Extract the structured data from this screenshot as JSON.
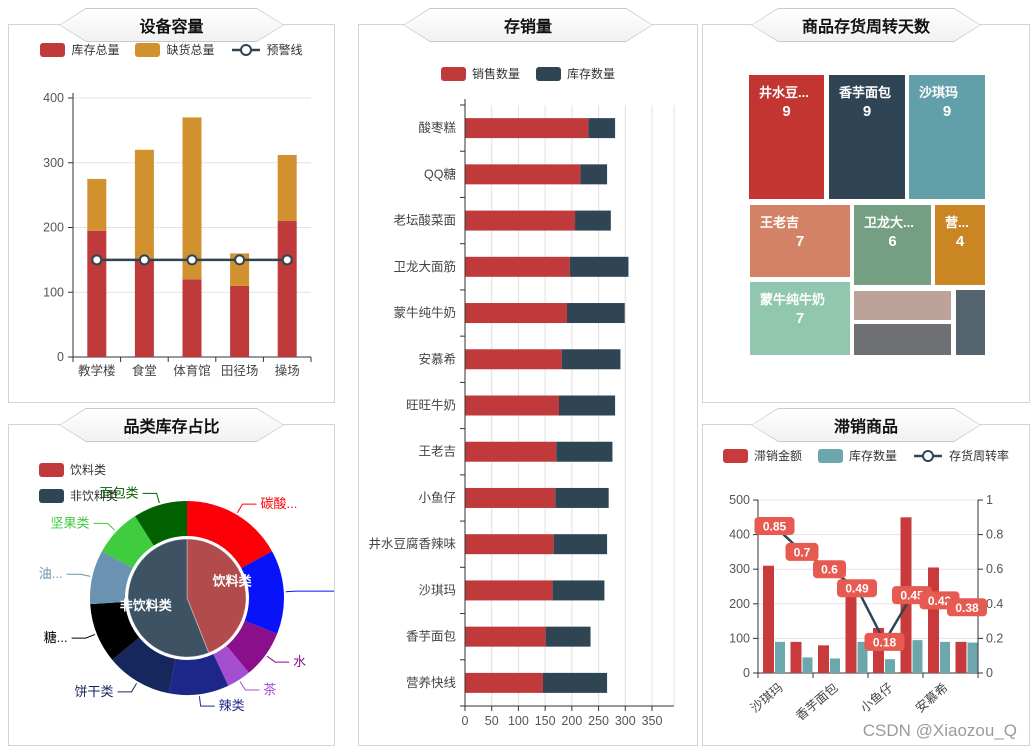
{
  "watermark": "CSDN @Xiaozou_Q",
  "chart_data": [
    {
      "id": "device-capacity",
      "type": "bar",
      "title": "设备容量",
      "legend": [
        {
          "label": "库存总量",
          "symbol": "rect",
          "color": "#c0393b"
        },
        {
          "label": "缺货总量",
          "symbol": "rect",
          "color": "#d0912e"
        },
        {
          "label": "预警线",
          "symbol": "line",
          "color": "#2f4554"
        }
      ],
      "categories": [
        "教学楼",
        "食堂",
        "体育馆",
        "田径场",
        "操场"
      ],
      "series": [
        {
          "name": "库存总量",
          "kind": "bar",
          "color": "#c0393b",
          "values": [
            195,
            150,
            120,
            110,
            210
          ]
        },
        {
          "name": "缺货总量",
          "kind": "bar",
          "color": "#d0912e",
          "values": [
            80,
            170,
            250,
            50,
            102
          ]
        },
        {
          "name": "预警线",
          "kind": "line",
          "color": "#2f4554",
          "values": [
            150,
            150,
            150,
            150,
            150
          ]
        }
      ],
      "ylim": [
        0,
        400
      ],
      "yticks": [
        0,
        100,
        200,
        300,
        400
      ],
      "grid": true
    },
    {
      "id": "stock-sales",
      "type": "bar",
      "title": "存销量",
      "legend": [
        {
          "label": "销售数量",
          "symbol": "rect",
          "color": "#c0393b"
        },
        {
          "label": "库存数量",
          "symbol": "rect",
          "color": "#2f4554"
        }
      ],
      "categories": [
        "酸枣糕",
        "QQ糖",
        "老坛酸菜面",
        "卫龙大面筋",
        "蒙牛纯牛奶",
        "安慕希",
        "旺旺牛奶",
        "王老吉",
        "小鱼仔",
        "井水豆腐香辣味",
        "沙琪玛",
        "香芋面包",
        "营养快线"
      ],
      "series": [
        {
          "name": "销售数量",
          "color": "#c0393b",
          "values": [
            230,
            215,
            205,
            195,
            190,
            180,
            175,
            170,
            168,
            165,
            163,
            150,
            145
          ]
        },
        {
          "name": "库存数量",
          "color": "#2f4554",
          "values": [
            50,
            50,
            67,
            110,
            108,
            110,
            105,
            105,
            100,
            100,
            97,
            84,
            120
          ]
        }
      ],
      "xlim": [
        0,
        350
      ],
      "xticks": [
        0,
        50,
        100,
        150,
        200,
        250,
        300,
        350
      ],
      "grid": true
    },
    {
      "id": "turnover-days",
      "type": "heatmap",
      "title": "商品存货周转天数",
      "items": [
        {
          "name": "井水豆...",
          "value": 9,
          "color": "#c23531"
        },
        {
          "name": "香芋面包",
          "value": 9,
          "color": "#2f4554"
        },
        {
          "name": "沙琪玛",
          "value": 9,
          "color": "#61a0a8"
        },
        {
          "name": "王老吉",
          "value": 7,
          "color": "#d48265"
        },
        {
          "name": "卫龙大...",
          "value": 6,
          "color": "#749f83"
        },
        {
          "name": "营...",
          "value": 4,
          "color": "#ca8622"
        },
        {
          "name": "蒙牛纯牛奶",
          "value": 7,
          "color": "#91c7ae"
        },
        {
          "name": "",
          "value": "",
          "color": "#bda29a"
        },
        {
          "name": "",
          "value": "",
          "color": "#6e7074"
        },
        {
          "name": "",
          "value": "",
          "color": "#546570"
        }
      ]
    },
    {
      "id": "category-share",
      "type": "pie",
      "title": "品类库存占比",
      "legend": [
        {
          "label": "饮料类",
          "symbol": "rect",
          "color": "#c0393b"
        },
        {
          "label": "非饮料类",
          "symbol": "rect",
          "color": "#2f4554"
        }
      ],
      "inner": [
        {
          "name": "饮料类",
          "value": 44,
          "color": "#b24b4b"
        },
        {
          "name": "非饮料类",
          "value": 56,
          "color": "#3d5263"
        }
      ],
      "outer": [
        {
          "name": "碳酸...",
          "value": 17,
          "color": "#fb0006"
        },
        {
          "name": "",
          "value": 14,
          "color": "#0913f9"
        },
        {
          "name": "水",
          "value": 8,
          "color": "#8a0f8a"
        },
        {
          "name": "茶",
          "value": 4,
          "color": "#a44fd0"
        },
        {
          "name": "辣类",
          "value": 10,
          "color": "#1d2788"
        },
        {
          "name": "饼干类",
          "value": 11,
          "color": "#16275e"
        },
        {
          "name": "糖...",
          "value": 10,
          "color": "#000000"
        },
        {
          "name": "油...",
          "value": 9,
          "color": "#6a93b1"
        },
        {
          "name": "坚果类",
          "value": 8,
          "color": "#3fcc3f"
        },
        {
          "name": "面包类",
          "value": 9,
          "color": "#026202"
        }
      ]
    },
    {
      "id": "slow-moving",
      "type": "bar",
      "title": "滞销商品",
      "legend": [
        {
          "label": "滞销金额",
          "symbol": "rect",
          "color": "#c93a3c"
        },
        {
          "label": "库存数量",
          "symbol": "rect",
          "color": "#6da7ae"
        },
        {
          "label": "存货周转率",
          "symbol": "line",
          "color": "#2f4554"
        }
      ],
      "x_labels": [
        "沙琪玛",
        "香芋面包",
        "小鱼仔",
        "安慕希"
      ],
      "series": [
        {
          "name": "滞销金额",
          "kind": "bar",
          "color": "#c93a3c",
          "values": [
            310,
            90,
            80,
            265,
            130,
            450,
            305,
            90
          ]
        },
        {
          "name": "库存数量",
          "kind": "bar",
          "color": "#6da7ae",
          "values": [
            90,
            45,
            42,
            90,
            40,
            95,
            90,
            88
          ]
        },
        {
          "name": "存货周转率",
          "kind": "line",
          "axis": "right",
          "color": "#2f4554",
          "label_bg": "#e75a52",
          "values": [
            0.85,
            0.7,
            0.6,
            0.49,
            0.18,
            0.45,
            0.42,
            0.38
          ]
        }
      ],
      "ylim_left": [
        0,
        500
      ],
      "yticks_left": [
        0,
        100,
        200,
        300,
        400,
        500
      ],
      "ylim_right": [
        0,
        1
      ],
      "yticks_right": [
        0,
        0.2,
        0.4,
        0.6,
        0.8,
        1
      ]
    }
  ]
}
